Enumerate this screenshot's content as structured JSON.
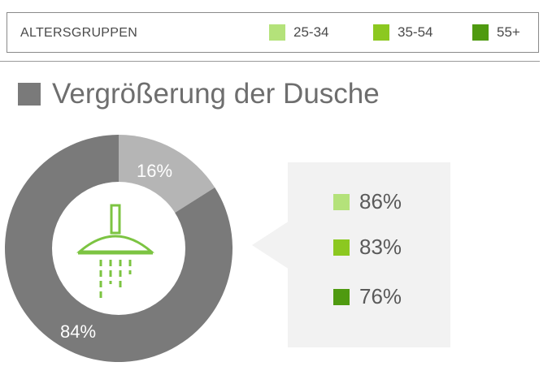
{
  "legend": {
    "title": "ALTERSGRUPPEN",
    "items": [
      {
        "label": "25-34",
        "color": "#b4e27a"
      },
      {
        "label": "35-54",
        "color": "#8cc820"
      },
      {
        "label": "55+",
        "color": "#4f9a10"
      }
    ]
  },
  "section": {
    "title": "Vergrößerung der Dusche",
    "color": "#7a7a7a"
  },
  "shower_icon": "shower-head-icon",
  "chart_data": {
    "type": "pie",
    "categories": [
      "",
      ""
    ],
    "values": [
      84,
      16
    ],
    "labels": [
      "84%",
      "16%"
    ],
    "colors": [
      "#7a7a7a",
      "#b5b5b5"
    ]
  },
  "breakdown": [
    {
      "label": "86%",
      "value": 86,
      "color": "#b4e27a"
    },
    {
      "label": "83%",
      "value": 83,
      "color": "#8cc820"
    },
    {
      "label": "76%",
      "value": 76,
      "color": "#4f9a10"
    }
  ]
}
